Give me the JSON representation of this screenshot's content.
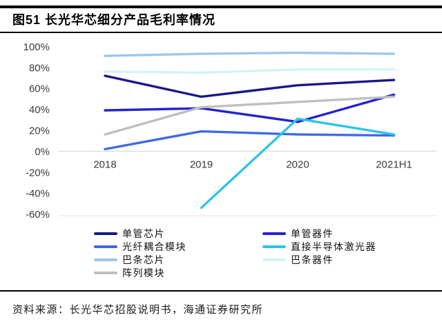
{
  "figure": {
    "title": "图51 长光华芯细分产品毛利率情况"
  },
  "source": {
    "text": "资料来源：长光华芯招股说明书，海通证券研究所"
  },
  "chart_data": {
    "type": "line",
    "title": "图51 长光华芯细分产品毛利率情况",
    "categories": [
      "2018",
      "2019",
      "2020",
      "2021H1"
    ],
    "series": [
      {
        "name": "单管芯片",
        "color": "#181889",
        "values": [
          72,
          52,
          63,
          68
        ]
      },
      {
        "name": "单管器件",
        "color": "#2323CF",
        "values": [
          39,
          41,
          28,
          54
        ]
      },
      {
        "name": "光纤耦合模块",
        "color": "#4169E1",
        "values": [
          2,
          19,
          16,
          15
        ]
      },
      {
        "name": "直接半导体激光器",
        "color": "#30C3E6",
        "values": [
          null,
          -54,
          31,
          16
        ]
      },
      {
        "name": "巴条芯片",
        "color": "#9EC6E8",
        "values": [
          91,
          93,
          94,
          93
        ]
      },
      {
        "name": "巴条器件",
        "color": "#D2F3F9",
        "values": [
          76,
          75,
          78,
          78
        ]
      },
      {
        "name": "阵列模块",
        "color": "#BFBFBF",
        "values": [
          16,
          42,
          47,
          52
        ]
      }
    ],
    "xlabel": "",
    "ylabel": "",
    "ylim": [
      -60,
      100
    ],
    "ytick_step": 20,
    "ytick_labels": [
      "100%",
      "80%",
      "60%",
      "40%",
      "20%",
      "0%",
      "-20%",
      "-40%",
      "-60%"
    ],
    "grid": "zero-line-only",
    "legend_position": "bottom, two columns",
    "unit": "percent"
  },
  "colors": {
    "axis_text": "#3A3A3A",
    "zero_gridline": "#D9D9D9",
    "plot_bottom_line": "#E3E3E3",
    "rule": "#000000",
    "background": "#FFFFFF"
  }
}
